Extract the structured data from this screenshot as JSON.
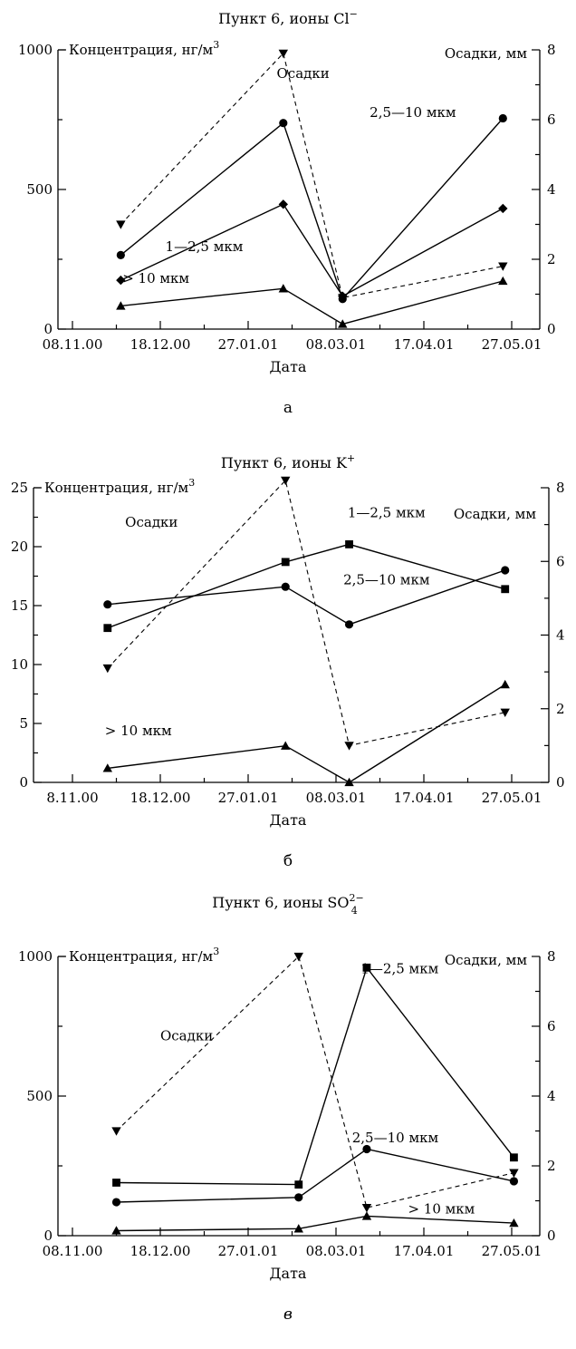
{
  "chart_data": [
    {
      "type": "line",
      "panel_label": "a",
      "title_main": "Пункт 6, ионы Cl",
      "title_sup": "−",
      "title_sub": "",
      "ylabel": "Концентрация, нг/м",
      "ylabel_sup": "3",
      "y2label": "Осадки, мм",
      "xlabel": "Дата",
      "x_ticks": [
        "08.11.00",
        "18.12.00",
        "27.01.01",
        "08.03.01",
        "17.04.01",
        "27.05.01"
      ],
      "ylim": [
        0,
        1000
      ],
      "y_ticks": [
        0,
        500,
        1000
      ],
      "y2lim": [
        0,
        8
      ],
      "y2_ticks": [
        0,
        2,
        4,
        6,
        8
      ],
      "series": [
        {
          "name": "2,5—10 мкм",
          "marker": "circle",
          "axis": "left",
          "x": [
            "2000-11-30",
            "2001-02-12",
            "2001-03-11",
            "2001-05-23"
          ],
          "y": [
            265,
            738,
            108,
            755
          ]
        },
        {
          "name": "1—2,5 мкм",
          "marker": "diamond",
          "axis": "left",
          "x": [
            "2000-11-30",
            "2001-02-12",
            "2001-03-11",
            "2001-05-23"
          ],
          "y": [
            175,
            447,
            118,
            432
          ]
        },
        {
          "name": "> 10 мкм",
          "marker": "triangle-up",
          "axis": "left",
          "x": [
            "2000-11-30",
            "2001-02-12",
            "2001-03-11",
            "2001-05-23"
          ],
          "y": [
            83,
            145,
            18,
            172
          ]
        },
        {
          "name": "Осадки",
          "marker": "triangle-down",
          "axis": "right",
          "dashed": true,
          "x": [
            "2000-11-30",
            "2001-02-12",
            "2001-03-11",
            "2001-05-23"
          ],
          "y": [
            3.0,
            7.9,
            0.9,
            1.8
          ]
        }
      ],
      "annotations": [
        {
          "text": "Осадки",
          "x": "2001-02-21",
          "y": 900
        },
        {
          "text": "2,5—10 мкм",
          "x": "2001-04-12",
          "y": 760
        },
        {
          "text": "1—2,5 мкм",
          "x": "2001-01-07",
          "y": 280
        },
        {
          "text": "> 10 мкм",
          "x": "2000-12-16",
          "y": 165
        }
      ]
    },
    {
      "type": "line",
      "panel_label": "б",
      "title_main": "Пункт 6, ионы K",
      "title_sup": "+",
      "title_sub": "",
      "ylabel": "Концентрация, нг/м",
      "ylabel_sup": "3",
      "y2label": "Осадки, мм",
      "xlabel": "Дата",
      "x_ticks": [
        "8.11.00",
        "18.12.00",
        "27.01.01",
        "08.03.01",
        "17.04.01",
        "27.05.01"
      ],
      "ylim": [
        0,
        25
      ],
      "y_ticks": [
        0,
        5,
        10,
        15,
        20,
        25
      ],
      "y2lim": [
        0,
        8
      ],
      "y2_ticks": [
        0,
        2,
        4,
        6,
        8
      ],
      "series": [
        {
          "name": "1—2,5 мкм",
          "marker": "square",
          "axis": "left",
          "x": [
            "2000-11-24",
            "2001-02-13",
            "2001-03-14",
            "2001-05-24"
          ],
          "y": [
            13.1,
            18.7,
            20.2,
            16.4
          ]
        },
        {
          "name": "2,5—10 мкм",
          "marker": "circle",
          "axis": "left",
          "x": [
            "2000-11-24",
            "2001-02-13",
            "2001-03-14",
            "2001-05-24"
          ],
          "y": [
            15.1,
            16.6,
            13.4,
            18.0
          ]
        },
        {
          "name": "> 10 мкм",
          "marker": "triangle-up",
          "axis": "left",
          "x": [
            "2000-11-24",
            "2001-02-13",
            "2001-03-14",
            "2001-05-24"
          ],
          "y": [
            1.2,
            3.1,
            0.0,
            8.3
          ]
        },
        {
          "name": "Осадки",
          "marker": "triangle-down",
          "axis": "right",
          "dashed": true,
          "x": [
            "2000-11-24",
            "2001-02-13",
            "2001-03-14",
            "2001-05-24"
          ],
          "y": [
            3.1,
            8.2,
            1.0,
            1.9
          ]
        }
      ],
      "annotations": [
        {
          "text": "Осадки",
          "x": "2000-12-14",
          "y": 21.7
        },
        {
          "text": "1—2,5 мкм",
          "x": "2001-03-31",
          "y": 22.5
        },
        {
          "text": "2,5—10 мкм",
          "x": "2001-03-31",
          "y": 16.8
        },
        {
          "text": "> 10 мкм",
          "x": "2000-12-08",
          "y": 4.0
        }
      ]
    },
    {
      "type": "line",
      "panel_label": "в",
      "title_main": "Пункт 6, ионы SO",
      "title_sup": "2−",
      "title_sub": "4",
      "ylabel": "Концентрация, нг/м",
      "ylabel_sup": "3",
      "y2label": "Осадки, мм",
      "xlabel": "Дата",
      "x_ticks": [
        "08.11.00",
        "18.12.00",
        "27.01.01",
        "08.03.01",
        "17.04.01",
        "27.05.01"
      ],
      "ylim": [
        0,
        1000
      ],
      "y_ticks": [
        0,
        500,
        1000
      ],
      "y2lim": [
        0,
        8
      ],
      "y2_ticks": [
        0,
        2,
        4,
        6,
        8
      ],
      "series": [
        {
          "name": "1—2,5 мкм",
          "marker": "square",
          "axis": "left",
          "x": [
            "2000-11-28",
            "2001-02-19",
            "2001-03-22",
            "2001-05-28"
          ],
          "y": [
            190,
            183,
            960,
            280
          ]
        },
        {
          "name": "2,5—10 мкм",
          "marker": "circle",
          "axis": "left",
          "x": [
            "2000-11-28",
            "2001-02-19",
            "2001-03-22",
            "2001-05-28"
          ],
          "y": [
            120,
            137,
            310,
            195
          ]
        },
        {
          "name": "> 10 мкм",
          "marker": "triangle-up",
          "axis": "left",
          "x": [
            "2000-11-28",
            "2001-02-19",
            "2001-03-22",
            "2001-05-28"
          ],
          "y": [
            18,
            25,
            70,
            45
          ]
        },
        {
          "name": "Осадки",
          "marker": "triangle-down",
          "axis": "right",
          "dashed": true,
          "x": [
            "2000-11-28",
            "2001-02-19",
            "2001-03-22",
            "2001-05-28"
          ],
          "y": [
            3.0,
            8.0,
            0.8,
            1.8
          ]
        }
      ],
      "annotations": [
        {
          "text": "Осадки",
          "x": "2000-12-30",
          "y": 700
        },
        {
          "text": "1—2,5 мкм",
          "x": "2001-04-06",
          "y": 940
        },
        {
          "text": "2,5—10 мкм",
          "x": "2001-04-04",
          "y": 335
        },
        {
          "text": "> 10 мкм",
          "x": "2001-04-25",
          "y": 80
        }
      ]
    }
  ]
}
